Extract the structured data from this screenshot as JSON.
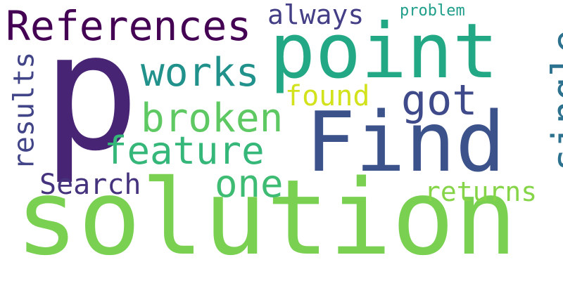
{
  "word_cloud": {
    "words": [
      {
        "text": "solution",
        "color": "#7ad151",
        "orientation": "horizontal"
      },
      {
        "text": "p",
        "color": "#482475",
        "orientation": "horizontal"
      },
      {
        "text": "point",
        "color": "#22a884",
        "orientation": "horizontal"
      },
      {
        "text": "Find",
        "color": "#3b528b",
        "orientation": "horizontal"
      },
      {
        "text": "References",
        "color": "#440154",
        "orientation": "horizontal"
      },
      {
        "text": "works",
        "color": "#21918c",
        "orientation": "horizontal"
      },
      {
        "text": "broken",
        "color": "#5ec962",
        "orientation": "horizontal"
      },
      {
        "text": "feature",
        "color": "#35b779",
        "orientation": "horizontal"
      },
      {
        "text": "got",
        "color": "#3e4a89",
        "orientation": "horizontal"
      },
      {
        "text": "single",
        "color": "#2c728e",
        "orientation": "vertical"
      },
      {
        "text": "one",
        "color": "#3fbc73",
        "orientation": "horizontal"
      },
      {
        "text": "results",
        "color": "#414487",
        "orientation": "vertical"
      },
      {
        "text": "Search",
        "color": "#46337e",
        "orientation": "horizontal"
      },
      {
        "text": "always",
        "color": "#433e85",
        "orientation": "horizontal"
      },
      {
        "text": "found",
        "color": "#d2e21b",
        "orientation": "horizontal"
      },
      {
        "text": "returns",
        "color": "#86d549",
        "orientation": "horizontal"
      },
      {
        "text": "problem",
        "color": "#1f9e89",
        "orientation": "horizontal"
      }
    ]
  }
}
